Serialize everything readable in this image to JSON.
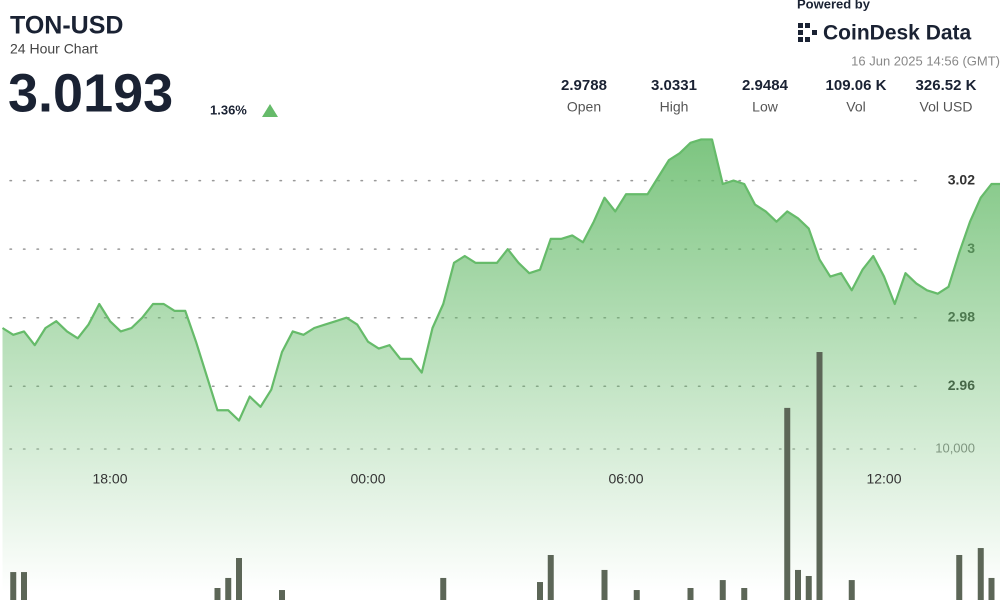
{
  "chart_data": {
    "type": "area",
    "title": "TON-USD",
    "subtitle": "24 Hour Chart",
    "price": "3.0193",
    "change": "1.36%",
    "stats": [
      {
        "value": "2.9788",
        "label": "Open"
      },
      {
        "value": "3.0331",
        "label": "High"
      },
      {
        "value": "2.9484",
        "label": "Low"
      },
      {
        "value": "109.06 K",
        "label": "Vol"
      },
      {
        "value": "326.52 K",
        "label": "Vol USD"
      }
    ],
    "powered_by": "Powered by",
    "brand": "CoinDesk Data",
    "date": "16 Jun 2025 14:56 (GMT)",
    "categories": [
      null,
      null,
      null,
      null,
      null,
      null,
      null,
      null,
      null,
      null,
      "18:00",
      null,
      null,
      null,
      null,
      null,
      null,
      null,
      null,
      null,
      null,
      null,
      null,
      null,
      null,
      null,
      null,
      null,
      null,
      null,
      null,
      null,
      null,
      null,
      "00:00",
      null,
      null,
      null,
      null,
      null,
      null,
      null,
      null,
      null,
      null,
      null,
      null,
      null,
      null,
      null,
      null,
      null,
      null,
      null,
      null,
      null,
      null,
      null,
      "06:00",
      null,
      null,
      null,
      null,
      null,
      null,
      null,
      null,
      null,
      null,
      null,
      null,
      null,
      null,
      null,
      null,
      null,
      null,
      null,
      null,
      null,
      null,
      null,
      "12:00",
      null,
      null,
      null,
      null,
      null,
      null,
      null,
      null,
      null,
      null,
      null
    ],
    "values": [
      2.977,
      2.975,
      2.976,
      2.972,
      2.977,
      2.979,
      2.976,
      2.974,
      2.978,
      2.984,
      2.979,
      2.976,
      2.977,
      2.98,
      2.984,
      2.984,
      2.982,
      2.982,
      2.973,
      2.963,
      2.953,
      2.953,
      2.95,
      2.957,
      2.954,
      2.959,
      2.97,
      2.976,
      2.975,
      2.977,
      2.978,
      2.979,
      2.98,
      2.978,
      2.973,
      2.971,
      2.972,
      2.968,
      2.968,
      2.964,
      2.977,
      2.984,
      2.996,
      2.998,
      2.996,
      2.996,
      2.996,
      3.0,
      2.996,
      2.993,
      2.994,
      3.003,
      3.003,
      3.004,
      3.002,
      3.008,
      3.015,
      3.011,
      3.016,
      3.016,
      3.016,
      3.021,
      3.026,
      3.028,
      3.031,
      3.032,
      3.032,
      3.019,
      3.02,
      3.019,
      3.013,
      3.011,
      3.008,
      3.011,
      3.009,
      3.006,
      2.997,
      2.992,
      2.993,
      2.988,
      2.994,
      2.998,
      2.992,
      2.984,
      2.993,
      2.99,
      2.988,
      2.987,
      2.989,
      2.999,
      3.008,
      3.015,
      3.019,
      3.019
    ],
    "volume": [
      0,
      1850,
      1850,
      0,
      0,
      0,
      0,
      0,
      0,
      0,
      0,
      0,
      0,
      0,
      0,
      0,
      0,
      0,
      0,
      0,
      795,
      1460,
      2780,
      0,
      0,
      0,
      660,
      0,
      0,
      0,
      0,
      0,
      0,
      0,
      0,
      0,
      0,
      0,
      0,
      0,
      0,
      1460,
      0,
      0,
      0,
      0,
      0,
      0,
      0,
      0,
      1190,
      2980,
      0,
      0,
      0,
      0,
      1990,
      0,
      0,
      660,
      0,
      0,
      0,
      0,
      795,
      0,
      0,
      1320,
      0,
      795,
      0,
      0,
      0,
      12720,
      1990,
      1590,
      16420,
      0,
      0,
      1320,
      0,
      0,
      0,
      0,
      0,
      0,
      0,
      0,
      0,
      2980,
      0,
      3440,
      1460,
      0
    ],
    "color": "#66bb6a",
    "volume_color": "#5c6657",
    "ylim": [
      2.9,
      3.04
    ],
    "yticks": [
      2.96,
      2.98,
      3.0,
      3.02
    ],
    "y2lim": [
      0,
      39000
    ],
    "y2ticks": [
      {
        "value": 10000,
        "label": "10,000"
      }
    ],
    "grid": true
  }
}
